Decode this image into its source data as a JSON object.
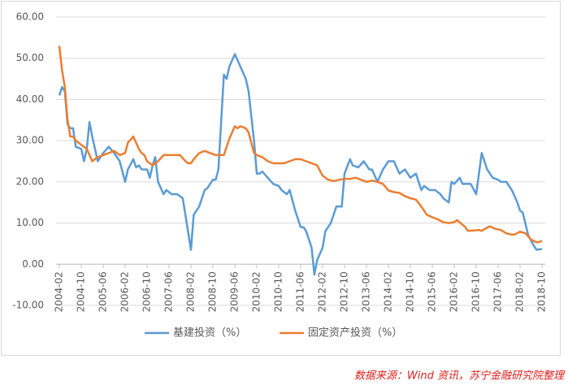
{
  "chart_data": {
    "type": "line",
    "xlim": [
      "2004-02",
      "2018-10"
    ],
    "xticks": [
      "2004-02",
      "2004-10",
      "2005-06",
      "2006-02",
      "2006-10",
      "2007-06",
      "2008-02",
      "2008-10",
      "2009-06",
      "2010-02",
      "2010-10",
      "2011-06",
      "2012-02",
      "2012-10",
      "2013-06",
      "2014-02",
      "2014-10",
      "2015-06",
      "2016-02",
      "2016-10",
      "2017-06",
      "2018-02",
      "2018-10"
    ],
    "ylim": [
      -10,
      60
    ],
    "yticks": [
      {
        "value": -10,
        "label": "-10.00"
      },
      {
        "value": 0,
        "label": "0.00"
      },
      {
        "value": 10,
        "label": "10.00"
      },
      {
        "value": 20,
        "label": "20.00"
      },
      {
        "value": 30,
        "label": "30.00"
      },
      {
        "value": 40,
        "label": "40.00"
      },
      {
        "value": 50,
        "label": "50.00"
      },
      {
        "value": 60,
        "label": "60.00"
      }
    ],
    "grid": true,
    "legend": "bottom",
    "source": "数据来源：Wind 资讯，苏宁金融研究院整理",
    "series": [
      {
        "name": "基建投资（%）",
        "color": "#5b9bd5",
        "x": [
          "2004-02",
          "2004-03",
          "2004-04",
          "2004-05",
          "2004-06",
          "2004-07",
          "2004-08",
          "2004-10",
          "2004-11",
          "2004-12",
          "2005-01",
          "2005-02",
          "2005-04",
          "2005-06",
          "2005-08",
          "2005-10",
          "2005-12",
          "2006-02",
          "2006-03",
          "2006-05",
          "2006-06",
          "2006-07",
          "2006-08",
          "2006-10",
          "2006-11",
          "2006-12",
          "2007-01",
          "2007-02",
          "2007-04",
          "2007-05",
          "2007-07",
          "2007-09",
          "2007-11",
          "2008-02",
          "2008-03",
          "2008-05",
          "2008-07",
          "2008-08",
          "2008-10",
          "2008-11",
          "2008-12",
          "2009-02",
          "2009-03",
          "2009-04",
          "2009-06",
          "2009-08",
          "2009-10",
          "2009-11",
          "2010-01",
          "2010-02",
          "2010-03",
          "2010-04",
          "2010-06",
          "2010-08",
          "2010-10",
          "2010-11",
          "2011-01",
          "2011-02",
          "2011-04",
          "2011-06",
          "2011-07",
          "2011-08",
          "2011-10",
          "2011-11",
          "2011-12",
          "2012-02",
          "2012-03",
          "2012-05",
          "2012-07",
          "2012-09",
          "2012-10",
          "2012-12",
          "2013-01",
          "2013-03",
          "2013-05",
          "2013-07",
          "2013-08",
          "2013-10",
          "2013-12",
          "2014-02",
          "2014-04",
          "2014-06",
          "2014-08",
          "2014-10",
          "2014-12",
          "2015-02",
          "2015-03",
          "2015-05",
          "2015-07",
          "2015-09",
          "2015-10",
          "2015-12",
          "2016-01",
          "2016-02",
          "2016-04",
          "2016-05",
          "2016-08",
          "2016-10",
          "2016-12",
          "2017-02",
          "2017-04",
          "2017-06",
          "2017-07",
          "2017-09",
          "2017-11",
          "2018-01",
          "2018-02",
          "2018-03",
          "2018-05",
          "2018-07",
          "2018-08",
          "2018-10"
        ],
        "values": [
          41,
          43,
          42,
          34,
          33,
          33,
          28.5,
          28,
          25,
          28,
          34.5,
          31,
          25,
          27,
          28.5,
          27,
          25,
          20,
          23,
          25.5,
          23.5,
          24,
          23,
          23,
          21,
          24,
          26,
          20,
          17,
          18,
          17,
          17,
          16,
          3.5,
          12,
          14,
          18,
          18.5,
          20.5,
          20.5,
          23,
          46,
          45,
          48,
          51,
          48,
          45,
          42,
          30,
          22,
          22,
          22.5,
          21,
          19.5,
          19,
          18,
          17,
          18,
          13,
          9,
          9,
          8,
          4,
          -2.5,
          1,
          4,
          8,
          10,
          14,
          14,
          22,
          25.5,
          24,
          23.5,
          25,
          23,
          23,
          20,
          23,
          25,
          25,
          22,
          23,
          21,
          22,
          18,
          19,
          18,
          18,
          17,
          16,
          15,
          20,
          19.5,
          21,
          19.5,
          19.5,
          17,
          27,
          23,
          21,
          20.5,
          20,
          20,
          18,
          15,
          13,
          12.5,
          7,
          4.5,
          3.5,
          3.7
        ]
      },
      {
        "name": "固定资产投资（%）",
        "color": "#ed7d31",
        "x": [
          "2004-02",
          "2004-03",
          "2004-04",
          "2004-05",
          "2004-06",
          "2004-07",
          "2004-08",
          "2004-10",
          "2004-12",
          "2005-02",
          "2005-04",
          "2005-06",
          "2005-08",
          "2005-10",
          "2005-12",
          "2006-02",
          "2006-03",
          "2006-05",
          "2006-07",
          "2006-08",
          "2006-09",
          "2006-10",
          "2006-12",
          "2007-02",
          "2007-04",
          "2007-06",
          "2007-08",
          "2007-10",
          "2007-12",
          "2008-01",
          "2008-02",
          "2008-03",
          "2008-05",
          "2008-07",
          "2008-09",
          "2008-11",
          "2008-12",
          "2009-02",
          "2009-04",
          "2009-06",
          "2009-07",
          "2009-08",
          "2009-10",
          "2009-11",
          "2010-01",
          "2010-02",
          "2010-04",
          "2010-06",
          "2010-08",
          "2010-10",
          "2010-12",
          "2011-02",
          "2011-04",
          "2011-06",
          "2011-08",
          "2011-10",
          "2011-12",
          "2012-02",
          "2012-04",
          "2012-06",
          "2012-08",
          "2012-10",
          "2012-12",
          "2013-02",
          "2013-04",
          "2013-06",
          "2013-08",
          "2013-10",
          "2013-12",
          "2014-02",
          "2014-04",
          "2014-06",
          "2014-08",
          "2014-10",
          "2014-12",
          "2015-02",
          "2015-04",
          "2015-06",
          "2015-08",
          "2015-10",
          "2015-12",
          "2016-02",
          "2016-03",
          "2016-05",
          "2016-06",
          "2016-07",
          "2016-09",
          "2016-11",
          "2016-12",
          "2017-02",
          "2017-03",
          "2017-05",
          "2017-07",
          "2017-09",
          "2017-11",
          "2017-12",
          "2018-02",
          "2018-04",
          "2018-06",
          "2018-08",
          "2018-09",
          "2018-10"
        ],
        "values": [
          53,
          47,
          43,
          35,
          31,
          31,
          30,
          29,
          28,
          25,
          26,
          26.5,
          27,
          27.5,
          26.5,
          27,
          29.5,
          31,
          28,
          27,
          26.5,
          25,
          24,
          25,
          26.5,
          26.5,
          26.5,
          26.5,
          25,
          24.5,
          24.5,
          25.5,
          27,
          27.5,
          27,
          26.5,
          26.5,
          26.5,
          30.5,
          33.5,
          33,
          33.5,
          33,
          32,
          27,
          26.5,
          26,
          25,
          24.5,
          24.5,
          24.5,
          25,
          25.5,
          25.5,
          25,
          24.5,
          24,
          21.5,
          20.5,
          20.2,
          20.5,
          20.7,
          20.7,
          21,
          20.5,
          20,
          20.3,
          20,
          19.5,
          17.9,
          17.5,
          17.3,
          16.5,
          16,
          15.7,
          14,
          12,
          11.4,
          10.9,
          10.2,
          10,
          10.2,
          10.7,
          9.6,
          9,
          8.1,
          8.2,
          8.3,
          8.1,
          8.9,
          9.2,
          8.6,
          8.3,
          7.5,
          7.2,
          7.2,
          7.9,
          7.5,
          6,
          5.3,
          5.4,
          5.7
        ]
      }
    ]
  }
}
